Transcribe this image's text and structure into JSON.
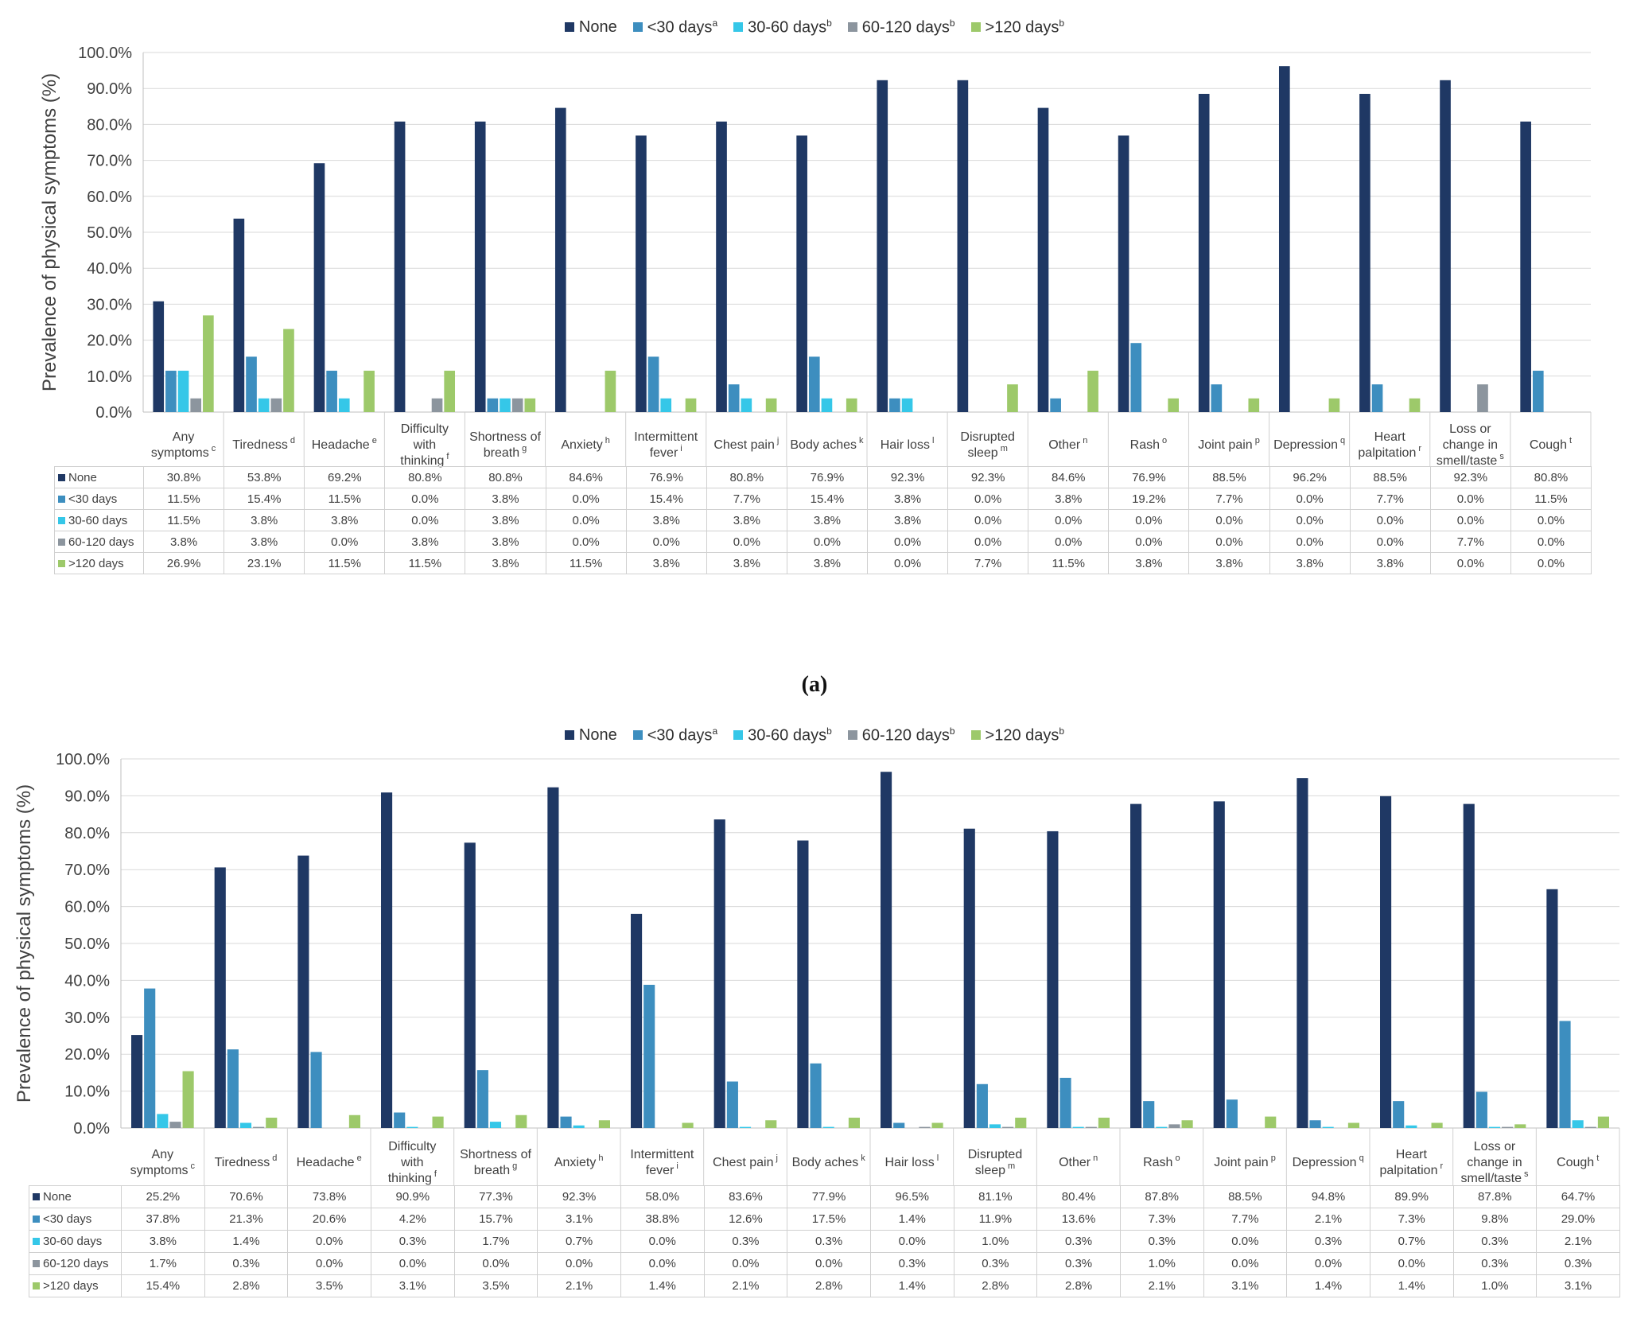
{
  "figure": {
    "caption_a": "(a)",
    "series_colors": {
      "None": "#1f3864",
      "<30 days": "#3d8ebf",
      "30-60 days": "#35c7e8",
      "60-120 days": "#8c959e",
      ">120 days": "#9dc96a"
    }
  },
  "chart_data": [
    {
      "type": "bar",
      "panel": "a",
      "ylabel": "Prevalence of physical symptoms (%)",
      "ylim": [
        0,
        100
      ],
      "ytick_labels": [
        "0.0%",
        "10.0%",
        "20.0%",
        "30.0%",
        "40.0%",
        "50.0%",
        "60.0%",
        "70.0%",
        "80.0%",
        "90.0%",
        "100.0%"
      ],
      "legend_position": "top-center",
      "grid": true,
      "legend": [
        {
          "name": "None",
          "sup": ""
        },
        {
          "name": "<30 days",
          "sup": "a"
        },
        {
          "name": "30-60 days",
          "sup": "b"
        },
        {
          "name": "60-120 days",
          "sup": "b"
        },
        {
          "name": ">120 days",
          "sup": "b"
        }
      ],
      "categories": [
        {
          "lines": [
            "Any",
            "symptoms"
          ],
          "sup": "c"
        },
        {
          "lines": [
            "Tiredness"
          ],
          "sup": "d"
        },
        {
          "lines": [
            "Headache"
          ],
          "sup": "e"
        },
        {
          "lines": [
            "Difficulty",
            "with",
            "thinking"
          ],
          "sup": "f"
        },
        {
          "lines": [
            "Shortness of",
            "breath"
          ],
          "sup": "g"
        },
        {
          "lines": [
            "Anxiety"
          ],
          "sup": "h"
        },
        {
          "lines": [
            "Intermittent",
            "fever"
          ],
          "sup": "i"
        },
        {
          "lines": [
            "Chest pain"
          ],
          "sup": "j"
        },
        {
          "lines": [
            "Body aches"
          ],
          "sup": "k"
        },
        {
          "lines": [
            "Hair loss"
          ],
          "sup": "l"
        },
        {
          "lines": [
            "Disrupted",
            "sleep"
          ],
          "sup": "m"
        },
        {
          "lines": [
            "Other"
          ],
          "sup": "n"
        },
        {
          "lines": [
            "Rash"
          ],
          "sup": "o"
        },
        {
          "lines": [
            "Joint pain"
          ],
          "sup": "p"
        },
        {
          "lines": [
            "Depression"
          ],
          "sup": "q"
        },
        {
          "lines": [
            "Heart",
            "palpitation"
          ],
          "sup": "r"
        },
        {
          "lines": [
            "Loss or",
            "change in",
            "smell/taste"
          ],
          "sup": "s"
        },
        {
          "lines": [
            "Cough"
          ],
          "sup": "t"
        }
      ],
      "series": [
        {
          "name": "None",
          "values": [
            30.8,
            53.8,
            69.2,
            80.8,
            80.8,
            84.6,
            76.9,
            80.8,
            76.9,
            92.3,
            92.3,
            84.6,
            76.9,
            88.5,
            96.2,
            88.5,
            92.3,
            80.8
          ],
          "labels": [
            "30.8%",
            "53.8%",
            "69.2%",
            "80.8%",
            "80.8%",
            "84.6%",
            "76.9%",
            "80.8%",
            "76.9%",
            "92.3%",
            "92.3%",
            "84.6%",
            "76.9%",
            "88.5%",
            "96.2%",
            "88.5%",
            "92.3%",
            "80.8%"
          ]
        },
        {
          "name": "<30 days",
          "values": [
            11.5,
            15.4,
            11.5,
            0.0,
            3.8,
            0.0,
            15.4,
            7.7,
            15.4,
            3.8,
            0.0,
            3.8,
            19.2,
            7.7,
            0.0,
            7.7,
            0.0,
            11.5
          ],
          "labels": [
            "11.5%",
            "15.4%",
            "11.5%",
            "0.0%",
            "3.8%",
            "0.0%",
            "15.4%",
            "7.7%",
            "15.4%",
            "3.8%",
            "0.0%",
            "3.8%",
            "19.2%",
            "7.7%",
            "0.0%",
            "7.7%",
            "0.0%",
            "11.5%"
          ]
        },
        {
          "name": "30-60 days",
          "values": [
            11.5,
            3.8,
            3.8,
            0.0,
            3.8,
            0.0,
            3.8,
            3.8,
            3.8,
            3.8,
            0.0,
            0.0,
            0.0,
            0.0,
            0.0,
            0.0,
            0.0,
            0.0
          ],
          "labels": [
            "11.5%",
            "3.8%",
            "3.8%",
            "0.0%",
            "3.8%",
            "0.0%",
            "3.8%",
            "3.8%",
            "3.8%",
            "3.8%",
            "0.0%",
            "0.0%",
            "0.0%",
            "0.0%",
            "0.0%",
            "0.0%",
            "0.0%",
            "0.0%"
          ]
        },
        {
          "name": "60-120 days",
          "values": [
            3.8,
            3.8,
            0.0,
            3.8,
            3.8,
            0.0,
            0.0,
            0.0,
            0.0,
            0.0,
            0.0,
            0.0,
            0.0,
            0.0,
            0.0,
            0.0,
            7.7,
            0.0
          ],
          "labels": [
            "3.8%",
            "3.8%",
            "0.0%",
            "3.8%",
            "3.8%",
            "0.0%",
            "0.0%",
            "0.0%",
            "0.0%",
            "0.0%",
            "0.0%",
            "0.0%",
            "0.0%",
            "0.0%",
            "0.0%",
            "0.0%",
            "7.7%",
            "0.0%"
          ]
        },
        {
          "name": ">120 days",
          "values": [
            26.9,
            23.1,
            11.5,
            11.5,
            3.8,
            11.5,
            3.8,
            3.8,
            3.8,
            0.0,
            7.7,
            11.5,
            3.8,
            3.8,
            3.8,
            3.8,
            0.0,
            0.0
          ],
          "labels": [
            "26.9%",
            "23.1%",
            "11.5%",
            "11.5%",
            "3.8%",
            "11.5%",
            "3.8%",
            "3.8%",
            "3.8%",
            "0.0%",
            "7.7%",
            "11.5%",
            "3.8%",
            "3.8%",
            "3.8%",
            "3.8%",
            "0.0%",
            "0.0%"
          ]
        }
      ]
    },
    {
      "type": "bar",
      "panel": "b",
      "ylabel": "Prevalence of physical symptoms (%)",
      "ylim": [
        0,
        100
      ],
      "ytick_labels": [
        "0.0%",
        "10.0%",
        "20.0%",
        "30.0%",
        "40.0%",
        "50.0%",
        "60.0%",
        "70.0%",
        "80.0%",
        "90.0%",
        "100.0%"
      ],
      "legend_position": "top-center",
      "grid": true,
      "legend": [
        {
          "name": "None",
          "sup": ""
        },
        {
          "name": "<30 days",
          "sup": "a"
        },
        {
          "name": "30-60 days",
          "sup": "b"
        },
        {
          "name": "60-120 days",
          "sup": "b"
        },
        {
          "name": ">120 days",
          "sup": "b"
        }
      ],
      "categories": [
        {
          "lines": [
            "Any",
            "symptoms"
          ],
          "sup": "c"
        },
        {
          "lines": [
            "Tiredness"
          ],
          "sup": "d"
        },
        {
          "lines": [
            "Headache"
          ],
          "sup": "e"
        },
        {
          "lines": [
            "Difficulty",
            "with",
            "thinking"
          ],
          "sup": "f"
        },
        {
          "lines": [
            "Shortness of",
            "breath"
          ],
          "sup": "g"
        },
        {
          "lines": [
            "Anxiety"
          ],
          "sup": "h"
        },
        {
          "lines": [
            "Intermittent",
            "fever"
          ],
          "sup": "i"
        },
        {
          "lines": [
            "Chest pain"
          ],
          "sup": "j"
        },
        {
          "lines": [
            "Body aches"
          ],
          "sup": "k"
        },
        {
          "lines": [
            "Hair loss"
          ],
          "sup": "l"
        },
        {
          "lines": [
            "Disrupted",
            "sleep"
          ],
          "sup": "m"
        },
        {
          "lines": [
            "Other"
          ],
          "sup": "n"
        },
        {
          "lines": [
            "Rash"
          ],
          "sup": "o"
        },
        {
          "lines": [
            "Joint pain"
          ],
          "sup": "p"
        },
        {
          "lines": [
            "Depression"
          ],
          "sup": "q"
        },
        {
          "lines": [
            "Heart",
            "palpitation"
          ],
          "sup": "r"
        },
        {
          "lines": [
            "Loss or",
            "change in",
            "smell/taste"
          ],
          "sup": "s"
        },
        {
          "lines": [
            "Cough"
          ],
          "sup": "t"
        }
      ],
      "series": [
        {
          "name": "None",
          "values": [
            25.2,
            70.6,
            73.8,
            90.9,
            77.3,
            92.3,
            58.0,
            83.6,
            77.9,
            96.5,
            81.1,
            80.4,
            87.8,
            88.5,
            94.8,
            89.9,
            87.8,
            64.7
          ],
          "labels": [
            "25.2%",
            "70.6%",
            "73.8%",
            "90.9%",
            "77.3%",
            "92.3%",
            "58.0%",
            "83.6%",
            "77.9%",
            "96.5%",
            "81.1%",
            "80.4%",
            "87.8%",
            "88.5%",
            "94.8%",
            "89.9%",
            "87.8%",
            "64.7%"
          ]
        },
        {
          "name": "<30 days",
          "values": [
            37.8,
            21.3,
            20.6,
            4.2,
            15.7,
            3.1,
            38.8,
            12.6,
            17.5,
            1.4,
            11.9,
            13.6,
            7.3,
            7.7,
            2.1,
            7.3,
            9.8,
            29.0
          ],
          "labels": [
            "37.8%",
            "21.3%",
            "20.6%",
            "4.2%",
            "15.7%",
            "3.1%",
            "38.8%",
            "12.6%",
            "17.5%",
            "1.4%",
            "11.9%",
            "13.6%",
            "7.3%",
            "7.7%",
            "2.1%",
            "7.3%",
            "9.8%",
            "29.0%"
          ]
        },
        {
          "name": "30-60 days",
          "values": [
            3.8,
            1.4,
            0.0,
            0.3,
            1.7,
            0.7,
            0.0,
            0.3,
            0.3,
            0.0,
            1.0,
            0.3,
            0.3,
            0.0,
            0.3,
            0.7,
            0.3,
            2.1
          ],
          "labels": [
            "3.8%",
            "1.4%",
            "0.0%",
            "0.3%",
            "1.7%",
            "0.7%",
            "0.0%",
            "0.3%",
            "0.3%",
            "0.0%",
            "1.0%",
            "0.3%",
            "0.3%",
            "0.0%",
            "0.3%",
            "0.7%",
            "0.3%",
            "2.1%"
          ]
        },
        {
          "name": "60-120 days",
          "values": [
            1.7,
            0.3,
            0.0,
            0.0,
            0.0,
            0.0,
            0.0,
            0.0,
            0.0,
            0.3,
            0.3,
            0.3,
            1.0,
            0.0,
            0.0,
            0.0,
            0.3,
            0.3
          ],
          "labels": [
            "1.7%",
            "0.3%",
            "0.0%",
            "0.0%",
            "0.0%",
            "0.0%",
            "0.0%",
            "0.0%",
            "0.0%",
            "0.3%",
            "0.3%",
            "0.3%",
            "1.0%",
            "0.0%",
            "0.0%",
            "0.0%",
            "0.3%",
            "0.3%"
          ]
        },
        {
          "name": ">120 days",
          "values": [
            15.4,
            2.8,
            3.5,
            3.1,
            3.5,
            2.1,
            1.4,
            2.1,
            2.8,
            1.4,
            2.8,
            2.8,
            2.1,
            3.1,
            1.4,
            1.4,
            1.0,
            3.1
          ],
          "labels": [
            "15.4%",
            "2.8%",
            "3.5%",
            "3.1%",
            "3.5%",
            "2.1%",
            "1.4%",
            "2.1%",
            "2.8%",
            "1.4%",
            "2.8%",
            "2.8%",
            "2.1%",
            "3.1%",
            "1.4%",
            "1.4%",
            "1.0%",
            "3.1%"
          ]
        }
      ]
    }
  ]
}
